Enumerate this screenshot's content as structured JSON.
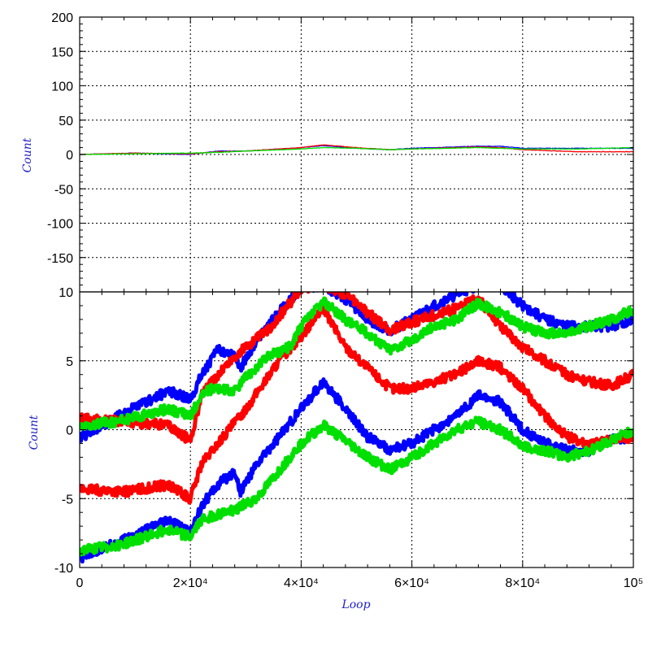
{
  "chart_data": [
    {
      "type": "line",
      "panel": "top",
      "title": "",
      "xlabel": "",
      "ylabel": "Count",
      "xlim": [
        0,
        100000
      ],
      "ylim": [
        -200,
        200
      ],
      "y_ticks": [
        200,
        150,
        100,
        50,
        0,
        -50,
        -100,
        -150
      ],
      "y_tick_labels": [
        "200",
        "150",
        "100",
        "50",
        "0",
        "-50",
        "-100",
        "-150"
      ],
      "grid": true,
      "series": [
        {
          "color": "#0000ff",
          "x": [
            0,
            10000,
            20000,
            25000,
            30000,
            40000,
            44000,
            50000,
            56000,
            60000,
            72000,
            76000,
            80000,
            90000,
            100000
          ],
          "y": [
            0,
            2,
            0,
            5,
            5,
            10,
            13,
            9,
            7,
            9,
            12,
            12,
            9,
            9,
            9
          ]
        },
        {
          "color": "#ff0000",
          "x": [
            0,
            10000,
            20000,
            25000,
            30000,
            40000,
            44000,
            50000,
            56000,
            60000,
            72000,
            76000,
            80000,
            90000,
            100000
          ],
          "y": [
            0,
            2,
            1,
            4,
            5,
            10,
            14,
            10,
            7,
            8,
            11,
            10,
            7,
            4,
            4
          ]
        },
        {
          "color": "#00e000",
          "x": [
            0,
            10000,
            20000,
            25000,
            30000,
            40000,
            44000,
            50000,
            56000,
            60000,
            72000,
            76000,
            80000,
            90000,
            100000
          ],
          "y": [
            0,
            1,
            2,
            3,
            5,
            8,
            10,
            9,
            7,
            8,
            10,
            9,
            8,
            8,
            10
          ]
        }
      ]
    },
    {
      "type": "line",
      "panel": "bottom",
      "title": "",
      "xlabel": "Loop",
      "ylabel": "Count",
      "xlim": [
        0,
        100000
      ],
      "ylim": [
        -10,
        10
      ],
      "y_ticks": [
        10,
        5,
        0,
        -5,
        -10
      ],
      "y_tick_labels": [
        "10",
        "5",
        "0",
        "-5",
        "-10"
      ],
      "x_ticks": [
        0,
        20000,
        40000,
        60000,
        80000,
        100000
      ],
      "x_tick_labels": [
        "0",
        "2×10⁴",
        "4×10⁴",
        "6×10⁴",
        "8×10⁴",
        "10⁵"
      ],
      "grid": true,
      "series": [
        {
          "color": "#0000ff",
          "x": [
            0,
            8000,
            16000,
            20000,
            22000,
            25000,
            28000,
            29000,
            32000,
            36000,
            40000,
            44000,
            48000,
            52000,
            56000,
            60000,
            64000,
            68000,
            72000,
            76000,
            80000,
            84000,
            88000,
            92000,
            96000,
            100000
          ],
          "y": [
            -9.3,
            -8.0,
            -6.6,
            -7.5,
            -5.5,
            -4.0,
            -3.0,
            -4.5,
            -2.5,
            -0.5,
            1.5,
            3.5,
            1.5,
            -0.5,
            -1.5,
            -1.0,
            0.0,
            1.0,
            2.5,
            2.0,
            0.0,
            -1.0,
            -1.5,
            -1.5,
            -0.7,
            -0.5
          ]
        },
        {
          "color": "#0000ff",
          "x": [
            0,
            8000,
            16000,
            20000,
            22000,
            25000,
            28000,
            29000,
            32000,
            36000,
            40000,
            44000,
            48000,
            52000,
            56000,
            60000,
            64000,
            68000,
            72000,
            76000,
            80000,
            84000,
            88000,
            92000,
            96000,
            100000
          ],
          "y": [
            -0.6,
            1.2,
            2.8,
            2.2,
            4.0,
            5.8,
            5.5,
            4.5,
            6.5,
            8.5,
            10.3,
            10.5,
            9.5,
            8.0,
            7.2,
            8.0,
            9.0,
            9.8,
            10.5,
            10.5,
            9.0,
            8.0,
            7.5,
            7.5,
            7.5,
            8.0
          ]
        },
        {
          "color": "#ff0000",
          "x": [
            0,
            8000,
            16000,
            20000,
            22000,
            26000,
            30000,
            36000,
            40000,
            44000,
            48000,
            52000,
            56000,
            60000,
            64000,
            68000,
            72000,
            76000,
            80000,
            84000,
            88000,
            92000,
            96000,
            100000
          ],
          "y": [
            -4.3,
            -4.5,
            -4.0,
            -5.0,
            -2.5,
            -0.5,
            1.5,
            5.0,
            6.8,
            8.8,
            6.0,
            4.5,
            3.0,
            3.0,
            3.5,
            4.0,
            5.0,
            4.5,
            3.0,
            1.0,
            -0.5,
            -1.0,
            -0.8,
            -0.5
          ]
        },
        {
          "color": "#ff0000",
          "x": [
            0,
            8000,
            16000,
            20000,
            22000,
            26000,
            30000,
            34000,
            38000,
            40000,
            44000,
            48000,
            52000,
            56000,
            60000,
            64000,
            68000,
            72000,
            76000,
            80000,
            84000,
            88000,
            92000,
            96000,
            100000
          ],
          "y": [
            0.8,
            0.6,
            0.3,
            -0.8,
            2.5,
            4.5,
            6.0,
            7.2,
            9.2,
            10.3,
            10.5,
            9.8,
            8.5,
            7.2,
            7.8,
            8.3,
            8.8,
            9.5,
            7.5,
            6.0,
            5.0,
            4.0,
            3.5,
            3.2,
            4.0
          ]
        },
        {
          "color": "#00e000",
          "x": [
            0,
            8000,
            16000,
            20000,
            22000,
            28000,
            32000,
            36000,
            40000,
            44000,
            48000,
            52000,
            56000,
            60000,
            64000,
            68000,
            72000,
            76000,
            80000,
            84000,
            88000,
            92000,
            96000,
            100000
          ],
          "y": [
            -8.8,
            -8.3,
            -7.2,
            -7.8,
            -6.5,
            -5.8,
            -5.0,
            -3.0,
            -1.0,
            0.3,
            -0.8,
            -2.0,
            -2.9,
            -2.0,
            -1.0,
            0.0,
            0.6,
            0.0,
            -1.2,
            -1.5,
            -2.0,
            -1.5,
            -0.8,
            0.0
          ]
        },
        {
          "color": "#00e000",
          "x": [
            0,
            8000,
            16000,
            20000,
            22000,
            24000,
            28000,
            30000,
            34000,
            38000,
            40000,
            44000,
            48000,
            52000,
            56000,
            60000,
            64000,
            68000,
            72000,
            76000,
            80000,
            84000,
            88000,
            92000,
            96000,
            100000
          ],
          "y": [
            0.2,
            0.7,
            1.5,
            1.0,
            2.5,
            3.0,
            2.8,
            3.8,
            5.3,
            6.0,
            7.5,
            9.3,
            8.0,
            7.0,
            5.8,
            6.5,
            7.5,
            8.0,
            9.2,
            8.5,
            7.5,
            7.0,
            7.0,
            7.5,
            8.0,
            8.7
          ]
        }
      ]
    }
  ]
}
